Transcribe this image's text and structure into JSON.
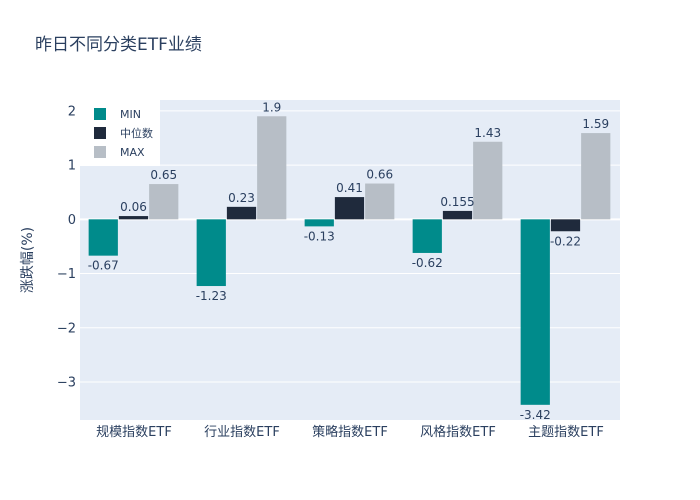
{
  "chart_data": {
    "type": "bar",
    "title": "昨日不同分类ETF业绩",
    "ylabel": "涨跌幅(%)",
    "xlabel": "",
    "categories": [
      "规模指数ETF",
      "行业指数ETF",
      "策略指数ETF",
      "风格指数ETF",
      "主题指数ETF"
    ],
    "ylim": [
      -3.7,
      2.2
    ],
    "yticks": [
      2,
      1,
      0,
      -1,
      -2,
      -3
    ],
    "ytick_labels": [
      "2",
      "1",
      "0",
      "−1",
      "−2",
      "−3"
    ],
    "grid": true,
    "legend_position": "top-left",
    "series": [
      {
        "name": "MIN",
        "color": "#008b8b",
        "values": [
          -0.67,
          -1.23,
          -0.13,
          -0.62,
          -3.42
        ],
        "labels": [
          "-0.67",
          "-1.23",
          "-0.13",
          "-0.62",
          "-3.42"
        ]
      },
      {
        "name": "中位数",
        "color": "#1f2a3c",
        "values": [
          0.06,
          0.23,
          0.41,
          0.155,
          -0.22
        ],
        "labels": [
          "0.06",
          "0.23",
          "0.41",
          "0.155",
          "-0.22"
        ]
      },
      {
        "name": "MAX",
        "color": "#b7bec6",
        "values": [
          0.65,
          1.9,
          0.66,
          1.43,
          1.59
        ],
        "labels": [
          "0.65",
          "1.9",
          "0.66",
          "1.43",
          "1.59"
        ]
      }
    ],
    "colors": {
      "plot_bg": "#e5ecf6",
      "grid": "#ffffff",
      "text": "#2a3f5f"
    }
  }
}
